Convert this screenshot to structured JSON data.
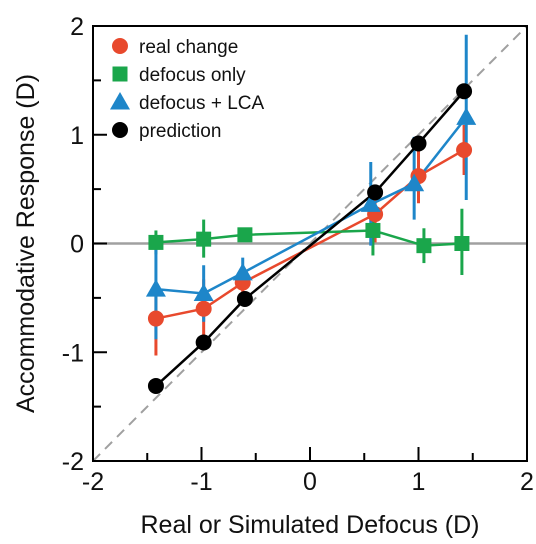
{
  "chart_data": {
    "type": "scatter",
    "xlabel": "Real or Simulated Defocus (D)",
    "ylabel": "Accommodative Response (D)",
    "xlim": [
      -2,
      2
    ],
    "ylim": [
      -2,
      2
    ],
    "xticks": [
      "-2",
      "-1",
      "0",
      "1",
      "2"
    ],
    "yticks": [
      "-2",
      "-1",
      "0",
      "1",
      "2"
    ],
    "grid": false,
    "legend_position": "top-left",
    "reference_lines": [
      {
        "name": "unity",
        "style": "dashed",
        "color": "#a0a0a0",
        "from": [
          -2,
          -2
        ],
        "to": [
          2,
          2
        ]
      },
      {
        "name": "zero",
        "style": "solid",
        "color": "#a0a0a0",
        "from": [
          -2,
          0
        ],
        "to": [
          2,
          0
        ]
      }
    ],
    "series": [
      {
        "name": "real change",
        "color": "#e8492d",
        "marker": "circle",
        "points": [
          {
            "x": -1.42,
            "y": -0.69,
            "lo": -1.03,
            "hi": -0.35
          },
          {
            "x": -0.98,
            "y": -0.6,
            "lo": -0.87,
            "hi": -0.33
          },
          {
            "x": -0.62,
            "y": -0.36,
            "lo": -0.46,
            "hi": -0.26
          },
          {
            "x": 0.6,
            "y": 0.27,
            "lo": 0.01,
            "hi": 0.53
          },
          {
            "x": 1.0,
            "y": 0.62,
            "lo": 0.37,
            "hi": 0.88
          },
          {
            "x": 1.42,
            "y": 0.86,
            "lo": 0.63,
            "hi": 1.09
          }
        ]
      },
      {
        "name": "defocus only",
        "color": "#1aa64b",
        "marker": "square",
        "points": [
          {
            "x": -1.42,
            "y": 0.01,
            "lo": -0.1,
            "hi": 0.12
          },
          {
            "x": -0.98,
            "y": 0.04,
            "lo": -0.13,
            "hi": 0.22
          },
          {
            "x": -0.6,
            "y": 0.08,
            "lo": 0.02,
            "hi": 0.14
          },
          {
            "x": 0.58,
            "y": 0.12,
            "lo": -0.11,
            "hi": 0.35
          },
          {
            "x": 1.05,
            "y": -0.02,
            "lo": -0.18,
            "hi": 0.14
          },
          {
            "x": 1.4,
            "y": 0.0,
            "lo": -0.29,
            "hi": 0.32
          }
        ]
      },
      {
        "name": "defocus + LCA",
        "color": "#1e86c9",
        "marker": "triangle",
        "points": [
          {
            "x": -1.42,
            "y": -0.42,
            "lo": -0.88,
            "hi": 0.04
          },
          {
            "x": -0.98,
            "y": -0.46,
            "lo": -0.72,
            "hi": -0.2
          },
          {
            "x": -0.62,
            "y": -0.27,
            "lo": -0.41,
            "hi": -0.13
          },
          {
            "x": 0.56,
            "y": 0.36,
            "lo": -0.02,
            "hi": 0.75
          },
          {
            "x": 0.96,
            "y": 0.55,
            "lo": 0.22,
            "hi": 0.98
          },
          {
            "x": 1.44,
            "y": 1.16,
            "lo": 0.4,
            "hi": 1.92
          }
        ]
      },
      {
        "name": "prediction",
        "color": "#000000",
        "marker": "circle",
        "points": [
          {
            "x": -1.42,
            "y": -1.31
          },
          {
            "x": -0.98,
            "y": -0.91
          },
          {
            "x": -0.6,
            "y": -0.51
          },
          {
            "x": 0.6,
            "y": 0.47
          },
          {
            "x": 1.0,
            "y": 0.92
          },
          {
            "x": 1.42,
            "y": 1.4
          }
        ]
      }
    ]
  }
}
